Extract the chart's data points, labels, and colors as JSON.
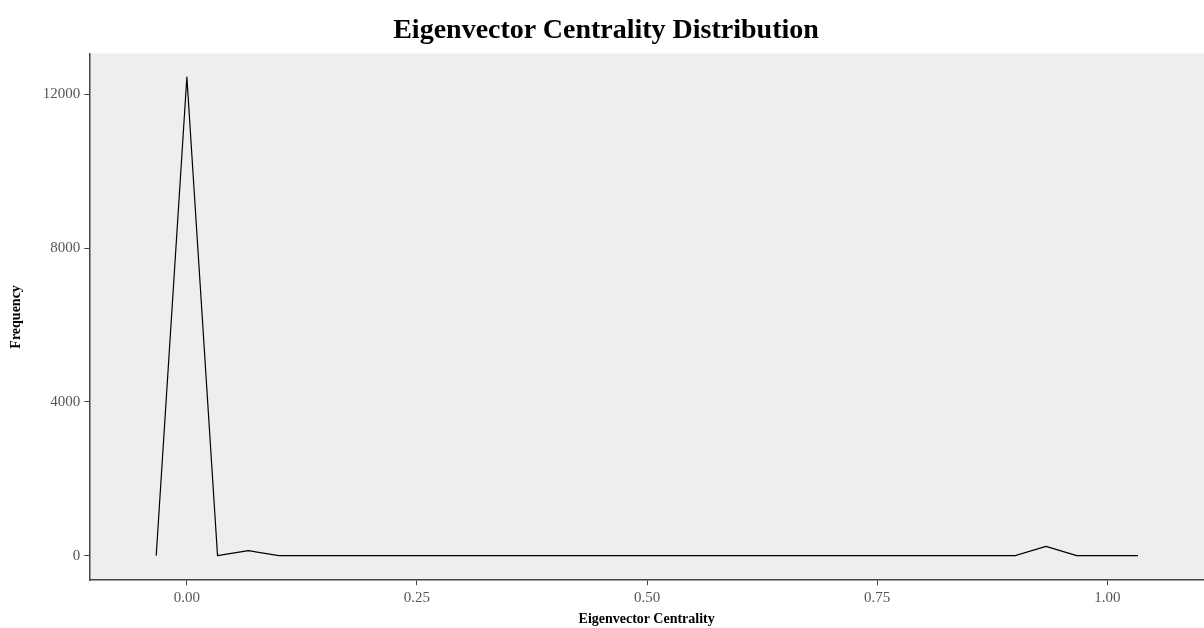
{
  "chart_data": {
    "type": "line",
    "title": "Eigenvector Centrality Distribution",
    "xlabel": "Eigenvector Centrality",
    "ylabel": "Frequency",
    "x": [
      -0.0333,
      0,
      0.0333,
      0.0667,
      0.1,
      0.1333,
      0.1667,
      0.2,
      0.2333,
      0.2667,
      0.3,
      0.3333,
      0.3667,
      0.4,
      0.4333,
      0.4667,
      0.5,
      0.5333,
      0.5667,
      0.6,
      0.6333,
      0.6667,
      0.7,
      0.7333,
      0.7667,
      0.8,
      0.8333,
      0.8667,
      0.9,
      0.9333,
      0.9667,
      1,
      1.0333
    ],
    "series": [
      {
        "color": "#000000",
        "values": [
          0,
          12450,
          0,
          130,
          0,
          0,
          0,
          0,
          0,
          0,
          0,
          0,
          0,
          0,
          0,
          0,
          0,
          0,
          0,
          0,
          0,
          0,
          0,
          0,
          0,
          0,
          0,
          0,
          0,
          240,
          0,
          0,
          0
        ]
      }
    ],
    "xlim": [
      -0.106,
      1.105
    ],
    "xticks": [
      {
        "value": 0,
        "label": "0.00"
      },
      {
        "value": 0.25,
        "label": "0.25"
      },
      {
        "value": 0.5,
        "label": "0.50"
      },
      {
        "value": 0.75,
        "label": "0.75"
      },
      {
        "value": 1,
        "label": "1.00"
      }
    ],
    "ylim": [
      -640,
      13060
    ],
    "yticks": [
      0,
      4000,
      8000,
      12000
    ],
    "grid": false,
    "legend": false,
    "marker": "none",
    "line_style": "solid"
  }
}
